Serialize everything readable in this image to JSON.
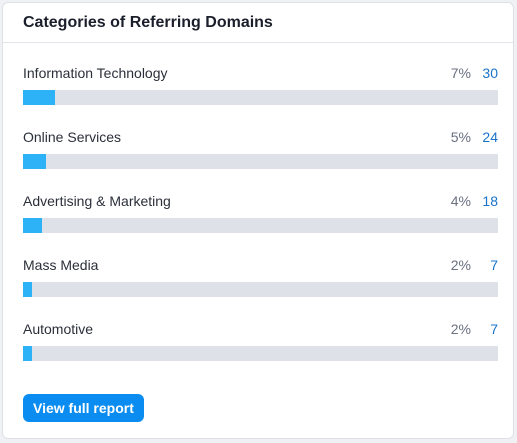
{
  "card": {
    "title": "Categories of Referring Domains"
  },
  "categories": [
    {
      "label": "Information Technology",
      "percent": "7%",
      "count": "30",
      "fill_fraction": 0.068
    },
    {
      "label": "Online Services",
      "percent": "5%",
      "count": "24",
      "fill_fraction": 0.049
    },
    {
      "label": "Advertising & Marketing",
      "percent": "4%",
      "count": "18",
      "fill_fraction": 0.04
    },
    {
      "label": "Mass Media",
      "percent": "2%",
      "count": "7",
      "fill_fraction": 0.019
    },
    {
      "label": "Automotive",
      "percent": "2%",
      "count": "7",
      "fill_fraction": 0.019
    }
  ],
  "button": {
    "label": "View full report"
  },
  "colors": {
    "bar_fill": "#2eb2f7",
    "bar_track": "#dfe1e8",
    "count_link": "#1a73c9",
    "button": "#0a8cf0"
  }
}
